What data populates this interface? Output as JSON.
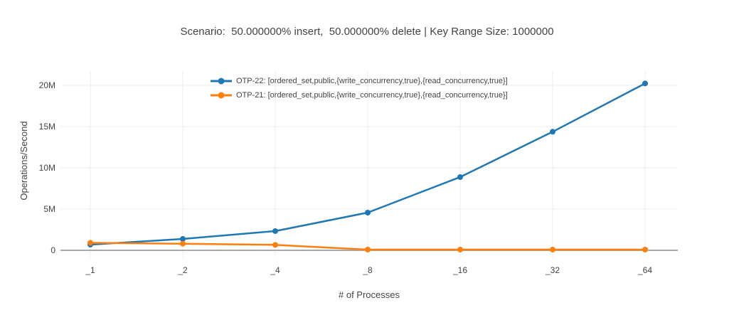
{
  "chart_data": {
    "type": "line",
    "title": "Scenario:  50.000000% insert,  50.000000% delete | Key Range Size: 1000000",
    "xlabel": "# of Processes",
    "ylabel": "Operations/Second",
    "categories": [
      "_1",
      "_2",
      "_4",
      "_8",
      "_16",
      "_32",
      "_64"
    ],
    "series": [
      {
        "name": "OTP-22: [ordered_set,public,{write_concurrency,true},{read_concurrency,true}]",
        "color": "#1f77b4",
        "values": [
          690000,
          1380000,
          2330000,
          4570000,
          8880000,
          14370000,
          20230000
        ]
      },
      {
        "name": "OTP-21: [ordered_set,public,{write_concurrency,true},{read_concurrency,true}]",
        "color": "#ff7f0e",
        "values": [
          910000,
          800000,
          660000,
          85000,
          85000,
          85000,
          85000
        ]
      }
    ],
    "yticks": [
      {
        "value": 0,
        "label": "0"
      },
      {
        "value": 5000000,
        "label": "5M"
      },
      {
        "value": 10000000,
        "label": "10M"
      },
      {
        "value": 15000000,
        "label": "15M"
      },
      {
        "value": 20000000,
        "label": "20M"
      }
    ],
    "ylim": [
      -860000,
      21700000
    ],
    "grid": true,
    "legend_position": "top-center",
    "markers": true,
    "colors": {
      "grid": "#eeeeee",
      "zeroline": "#aaaaaa",
      "text": "#444444",
      "background": "#ffffff"
    }
  }
}
